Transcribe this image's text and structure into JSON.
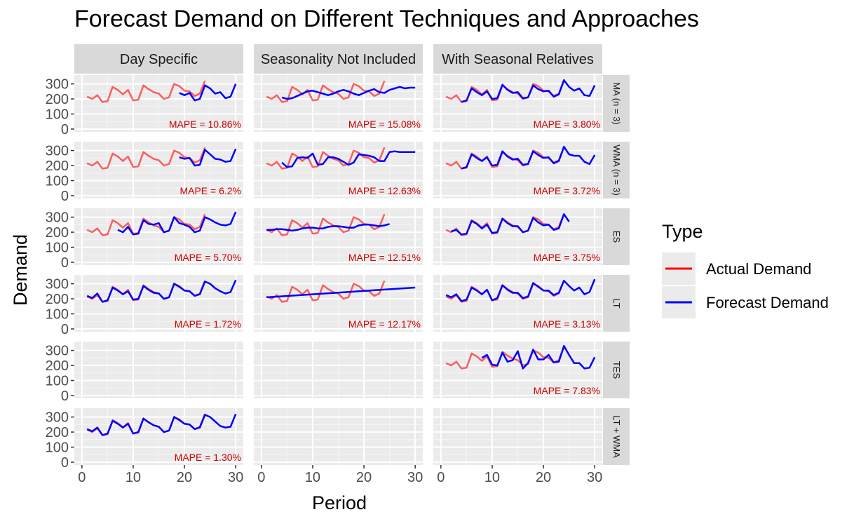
{
  "chart_data": {
    "type": "line",
    "title": "Forecast Demand on Different Techniques and Approaches",
    "xlabel": "Period",
    "ylabel": "Demand",
    "xlim": [
      0,
      30
    ],
    "ylim": [
      0,
      340
    ],
    "x_ticks": [
      "0",
      "10",
      "20",
      "30"
    ],
    "y_ticks": [
      "0",
      "100",
      "200",
      "300"
    ],
    "grid": true,
    "legend": {
      "title": "Type",
      "position": "right",
      "entries": [
        {
          "label": "Actual Demand",
          "color": "#ff0000"
        },
        {
          "label": "Forecast Demand",
          "color": "#0000ff"
        }
      ]
    },
    "facet_columns": [
      "Day Specific",
      "Seasonality Not Included",
      "With Seasonal Relatives"
    ],
    "facet_rows": [
      "MA (n = 3)",
      "WMA (n = 3)",
      "ES",
      "LT",
      "TES",
      "LT + WMA"
    ],
    "actual": {
      "name": "Actual Demand",
      "x": [
        1,
        2,
        3,
        4,
        5,
        6,
        7,
        8,
        9,
        10,
        11,
        12,
        13,
        14,
        15,
        16,
        17,
        18,
        19,
        20,
        21,
        22,
        23,
        24
      ],
      "y": [
        215,
        200,
        225,
        180,
        185,
        280,
        260,
        230,
        260,
        190,
        195,
        290,
        265,
        245,
        235,
        200,
        210,
        300,
        285,
        255,
        250,
        220,
        235,
        320
      ]
    },
    "panels": [
      {
        "row": 0,
        "col": 0,
        "mape": "MAPE = 10.86%",
        "forecast_x": [
          19,
          20,
          21,
          22,
          23,
          24,
          25,
          26,
          27,
          28,
          29,
          30
        ],
        "forecast_y": [
          240,
          225,
          240,
          190,
          200,
          290,
          270,
          235,
          245,
          205,
          215,
          300
        ]
      },
      {
        "row": 0,
        "col": 1,
        "mape": "MAPE = 15.08%",
        "forecast_x": [
          4,
          5,
          6,
          7,
          8,
          9,
          10,
          11,
          12,
          13,
          14,
          15,
          16,
          17,
          18,
          19,
          20,
          21,
          22,
          23,
          24,
          25,
          26,
          27,
          28,
          29,
          30
        ],
        "forecast_y": [
          210,
          200,
          205,
          220,
          235,
          250,
          255,
          245,
          235,
          225,
          235,
          250,
          260,
          250,
          235,
          225,
          240,
          255,
          265,
          245,
          240,
          260,
          270,
          280,
          270,
          275,
          275
        ]
      },
      {
        "row": 0,
        "col": 2,
        "mape": "MAPE = 3.80%",
        "forecast_x": [
          4,
          5,
          6,
          7,
          8,
          9,
          10,
          11,
          12,
          13,
          14,
          15,
          16,
          17,
          18,
          19,
          20,
          21,
          22,
          23,
          24,
          25,
          26,
          27,
          28,
          29,
          30
        ],
        "forecast_y": [
          180,
          190,
          270,
          245,
          225,
          250,
          200,
          205,
          295,
          260,
          240,
          245,
          205,
          210,
          290,
          265,
          250,
          255,
          215,
          230,
          325,
          280,
          255,
          270,
          225,
          220,
          290
        ]
      },
      {
        "row": 1,
        "col": 0,
        "mape": "MAPE = 6.2%",
        "forecast_x": [
          19,
          20,
          21,
          22,
          23,
          24,
          25,
          26,
          27,
          28,
          29,
          30
        ],
        "forecast_y": [
          255,
          245,
          250,
          200,
          205,
          305,
          275,
          245,
          240,
          225,
          230,
          310
        ]
      },
      {
        "row": 1,
        "col": 1,
        "mape": "MAPE = 12.63%",
        "forecast_x": [
          4,
          5,
          6,
          7,
          8,
          9,
          10,
          11,
          12,
          13,
          14,
          15,
          16,
          17,
          18,
          19,
          20,
          21,
          22,
          23,
          24,
          25,
          26,
          27,
          28,
          29,
          30
        ],
        "forecast_y": [
          220,
          190,
          195,
          250,
          255,
          250,
          280,
          205,
          210,
          255,
          255,
          245,
          225,
          205,
          220,
          275,
          270,
          265,
          255,
          230,
          230,
          290,
          295,
          290,
          290,
          290,
          290
        ]
      },
      {
        "row": 1,
        "col": 2,
        "mape": "MAPE = 3.72%",
        "forecast_x": [
          4,
          5,
          6,
          7,
          8,
          9,
          10,
          11,
          12,
          13,
          14,
          15,
          16,
          17,
          18,
          19,
          20,
          21,
          22,
          23,
          24,
          25,
          26,
          27,
          28,
          29,
          30
        ],
        "forecast_y": [
          180,
          190,
          275,
          250,
          230,
          255,
          200,
          205,
          295,
          260,
          240,
          245,
          205,
          210,
          295,
          270,
          250,
          255,
          215,
          230,
          325,
          275,
          265,
          265,
          225,
          210,
          270
        ]
      },
      {
        "row": 2,
        "col": 0,
        "mape": "MAPE = 5.70%",
        "forecast_x": [
          7,
          8,
          9,
          10,
          11,
          12,
          13,
          14,
          15,
          16,
          17,
          18,
          19,
          20,
          21,
          22,
          23,
          24,
          25,
          26,
          27,
          28,
          29,
          30
        ],
        "forecast_y": [
          215,
          200,
          235,
          185,
          190,
          280,
          255,
          250,
          260,
          200,
          210,
          300,
          260,
          250,
          235,
          200,
          210,
          300,
          285,
          265,
          250,
          245,
          255,
          335
        ]
      },
      {
        "row": 2,
        "col": 1,
        "mape": "MAPE = 12.51%",
        "forecast_x": [
          1,
          2,
          3,
          4,
          5,
          6,
          7,
          8,
          9,
          10,
          11,
          12,
          13,
          14,
          15,
          16,
          17,
          18,
          19,
          20,
          21,
          22,
          23,
          24,
          25
        ],
        "forecast_y": [
          215,
          215,
          220,
          220,
          215,
          210,
          215,
          225,
          230,
          230,
          225,
          225,
          235,
          240,
          240,
          235,
          230,
          230,
          245,
          250,
          250,
          245,
          240,
          245,
          255
        ]
      },
      {
        "row": 2,
        "col": 2,
        "mape": "MAPE = 3.75%",
        "forecast_x": [
          2,
          3,
          4,
          5,
          6,
          7,
          8,
          9,
          10,
          11,
          12,
          13,
          14,
          15,
          16,
          17,
          18,
          19,
          20,
          21,
          22,
          23,
          24,
          25
        ],
        "forecast_y": [
          205,
          215,
          185,
          190,
          275,
          255,
          225,
          250,
          195,
          200,
          290,
          260,
          240,
          240,
          200,
          210,
          295,
          265,
          245,
          250,
          215,
          225,
          320,
          270
        ]
      },
      {
        "row": 3,
        "col": 0,
        "mape": "MAPE = 1.72%",
        "forecast_x": [
          1,
          2,
          3,
          4,
          5,
          6,
          7,
          8,
          9,
          10,
          11,
          12,
          13,
          14,
          15,
          16,
          17,
          18,
          19,
          20,
          21,
          22,
          23,
          24,
          25,
          26,
          27,
          28,
          29,
          30
        ],
        "forecast_y": [
          220,
          205,
          235,
          180,
          190,
          275,
          255,
          230,
          250,
          195,
          200,
          285,
          260,
          240,
          235,
          200,
          210,
          300,
          280,
          255,
          250,
          220,
          230,
          315,
          300,
          270,
          250,
          235,
          245,
          325
        ]
      },
      {
        "row": 3,
        "col": 1,
        "mape": "MAPE = 12.17%",
        "forecast_x": [
          1,
          30
        ],
        "forecast_y": [
          210,
          275
        ]
      },
      {
        "row": 3,
        "col": 2,
        "mape": "MAPE = 3.13%",
        "forecast_x": [
          1,
          2,
          3,
          4,
          5,
          6,
          7,
          8,
          9,
          10,
          11,
          12,
          13,
          14,
          15,
          16,
          17,
          18,
          19,
          20,
          21,
          22,
          23,
          24,
          25,
          26,
          27,
          28,
          29,
          30
        ],
        "forecast_y": [
          225,
          210,
          230,
          185,
          195,
          275,
          255,
          230,
          260,
          190,
          205,
          290,
          260,
          240,
          240,
          205,
          215,
          305,
          280,
          255,
          255,
          225,
          240,
          320,
          285,
          255,
          275,
          230,
          245,
          330
        ]
      },
      {
        "row": 4,
        "col": 2,
        "mape": "MAPE = 7.83%",
        "forecast_x": [
          8,
          9,
          10,
          11,
          12,
          13,
          14,
          15,
          16,
          17,
          18,
          19,
          20,
          21,
          22,
          23,
          24,
          25,
          26,
          27,
          28,
          29,
          30
        ],
        "forecast_y": [
          250,
          270,
          205,
          200,
          285,
          225,
          235,
          295,
          180,
          215,
          305,
          240,
          240,
          270,
          220,
          225,
          330,
          270,
          215,
          215,
          180,
          185,
          255
        ]
      },
      {
        "row": 5,
        "col": 0,
        "mape": "MAPE = 1.30%",
        "forecast_x": [
          1,
          2,
          3,
          4,
          5,
          6,
          7,
          8,
          9,
          10,
          11,
          12,
          13,
          14,
          15,
          16,
          17,
          18,
          19,
          20,
          21,
          22,
          23,
          24,
          25,
          26,
          27,
          28,
          29,
          30
        ],
        "forecast_y": [
          220,
          205,
          230,
          180,
          190,
          275,
          255,
          230,
          255,
          190,
          200,
          290,
          265,
          245,
          235,
          200,
          210,
          300,
          280,
          255,
          250,
          220,
          230,
          315,
          300,
          270,
          240,
          230,
          235,
          320
        ]
      }
    ]
  }
}
